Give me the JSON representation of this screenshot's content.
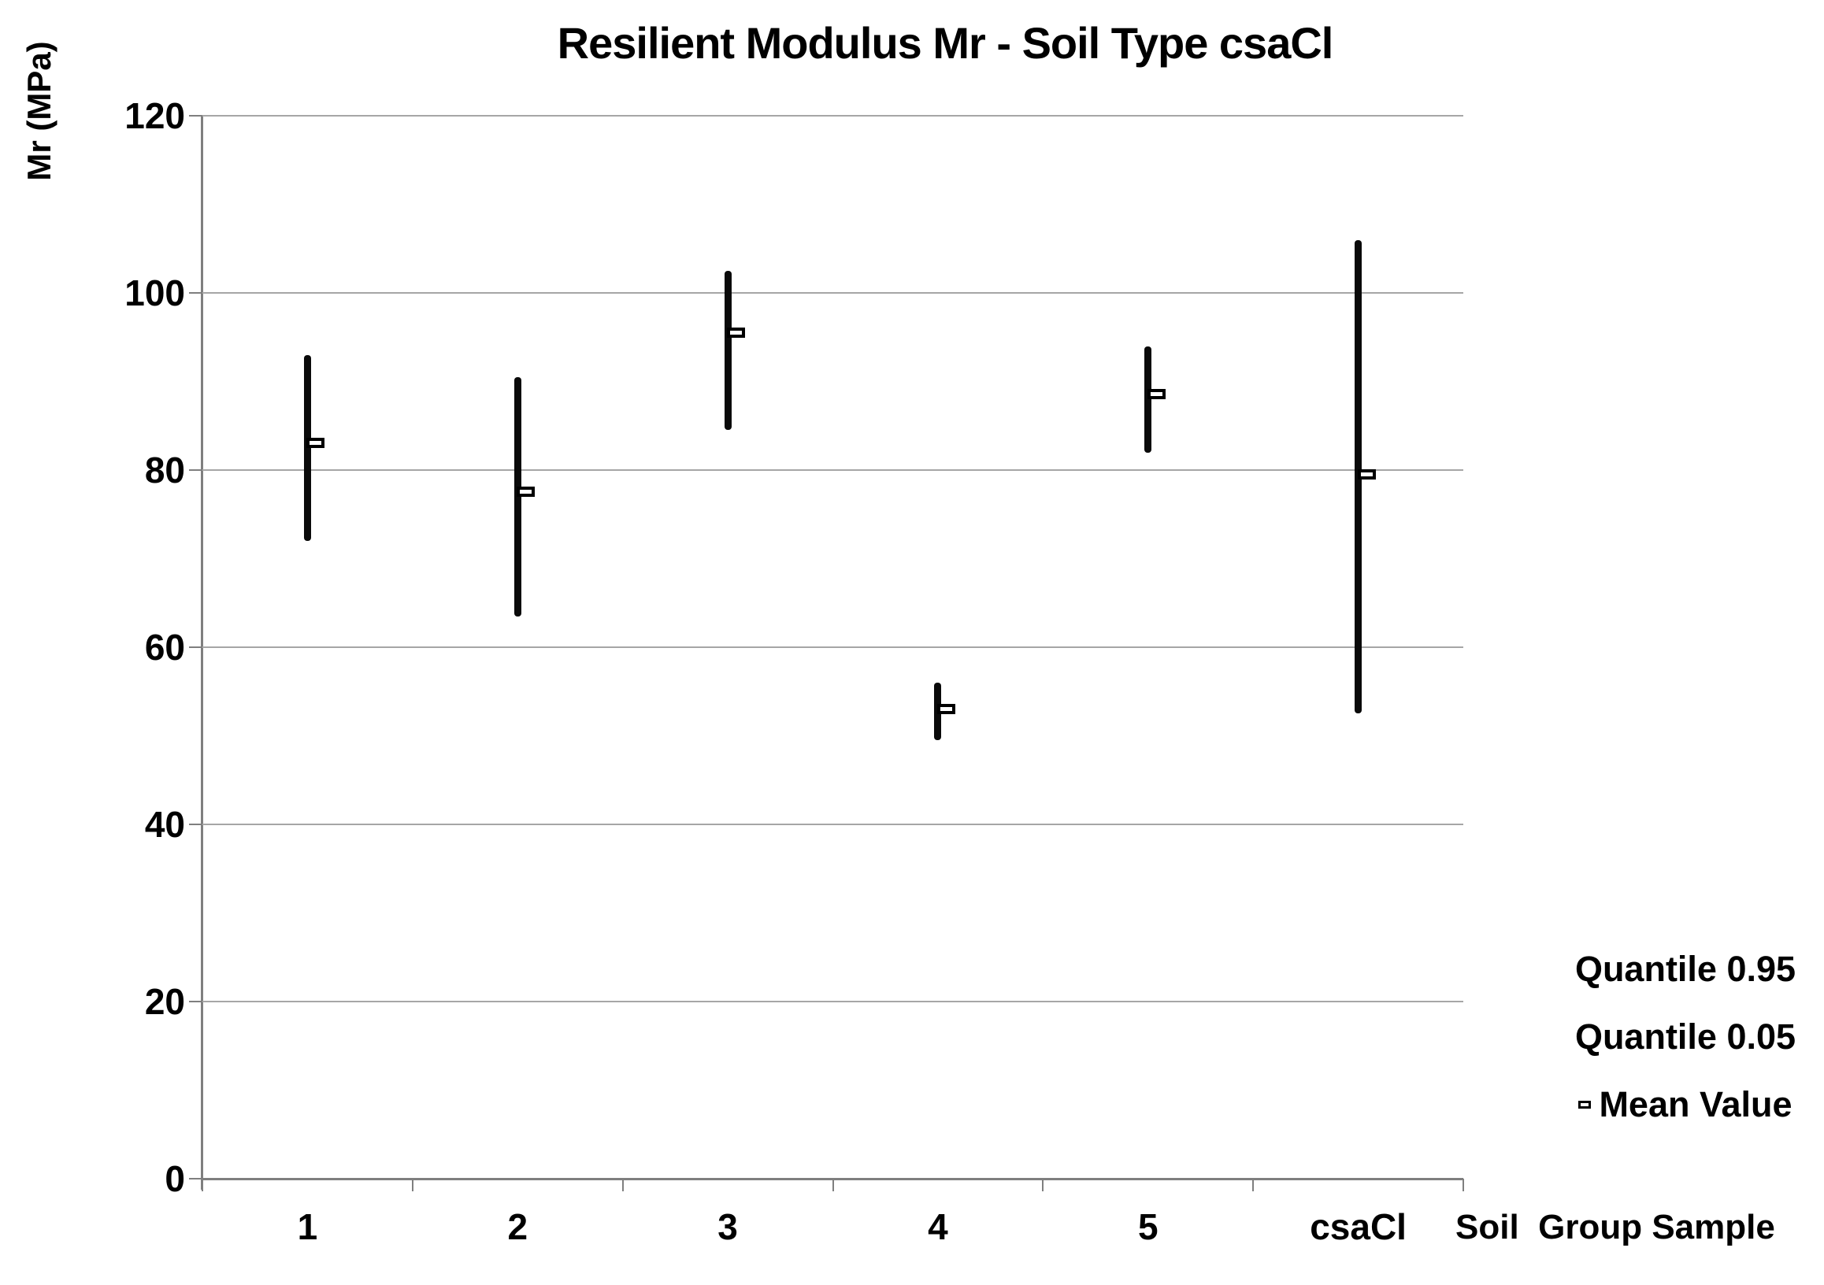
{
  "chart_data": {
    "type": "bar",
    "subtype": "high-low-range-with-mean",
    "title": "Resilient Modulus Mr - Soil Type csaCl",
    "xlabel": "Soil  Group Sample",
    "ylabel": "Mr (MPa)",
    "categories": [
      "1",
      "2",
      "3",
      "4",
      "5",
      "csaCl"
    ],
    "series": [
      {
        "name": "Quantile 0.95",
        "values": [
          93,
          90.5,
          102.5,
          56,
          94,
          106
        ]
      },
      {
        "name": "Quantile 0.05",
        "values": [
          72,
          63.5,
          84.5,
          49.5,
          82,
          52.5
        ]
      },
      {
        "name": "Mean Value",
        "values": [
          83,
          77.5,
          95.5,
          53,
          88.5,
          79.5
        ]
      }
    ],
    "legend": [
      "Quantile 0.95",
      "Quantile 0.05",
      "Mean Value"
    ],
    "legend_position": "right-bottom",
    "yticks": [
      0,
      20,
      40,
      60,
      80,
      100,
      120
    ],
    "ylim": [
      0,
      120
    ],
    "grid": "horizontal",
    "colors": {
      "bar": "#0a0a0a",
      "gridline": "#a6a6a6",
      "axis": "#7f7f7f",
      "text": "#000000",
      "marker_fill": "#ffffff"
    }
  }
}
